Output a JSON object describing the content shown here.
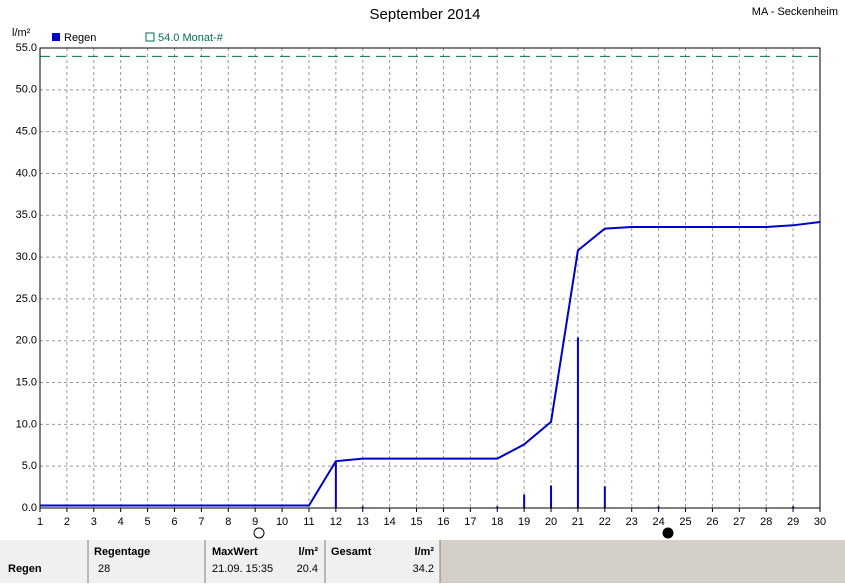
{
  "chart_data": {
    "type": "line",
    "title": "September 2014",
    "station": "MA - Seckenheim",
    "y_unit": "l/m²",
    "x": [
      1,
      2,
      3,
      4,
      5,
      6,
      7,
      8,
      9,
      10,
      11,
      12,
      13,
      14,
      15,
      16,
      17,
      18,
      19,
      20,
      21,
      22,
      23,
      24,
      25,
      26,
      27,
      28,
      29,
      30
    ],
    "series": [
      {
        "name": "Regen",
        "color": "#0000cc",
        "values": [
          0.3,
          0.3,
          0.3,
          0.3,
          0.3,
          0.3,
          0.3,
          0.3,
          0.3,
          0.3,
          0.3,
          5.6,
          5.9,
          5.9,
          5.9,
          5.9,
          5.9,
          5.9,
          7.6,
          10.3,
          30.8,
          33.4,
          33.6,
          33.6,
          33.6,
          33.6,
          33.6,
          33.6,
          33.8,
          34.2
        ],
        "bar_values": [
          null,
          null,
          null,
          null,
          null,
          null,
          null,
          null,
          null,
          null,
          null,
          5.6,
          0.2,
          null,
          null,
          null,
          null,
          0.2,
          1.6,
          2.7,
          20.4,
          2.6,
          null,
          0.2,
          null,
          null,
          null,
          null,
          0.2,
          null
        ]
      }
    ],
    "reference": {
      "value": 54.0,
      "label": "54.0 Monat-#",
      "color": "#007050"
    },
    "xlim": [
      1,
      30
    ],
    "ylim": [
      0,
      55
    ],
    "xticks": [
      1,
      2,
      3,
      4,
      5,
      6,
      7,
      8,
      9,
      10,
      11,
      12,
      13,
      14,
      15,
      16,
      17,
      18,
      19,
      20,
      21,
      22,
      23,
      24,
      25,
      26,
      27,
      28,
      29,
      30
    ],
    "yticks": [
      {
        "value": 0,
        "label": "0.0"
      },
      {
        "value": 5,
        "label": "5.0"
      },
      {
        "value": 10,
        "label": "10.0"
      },
      {
        "value": 15,
        "label": "15.0"
      },
      {
        "value": 20,
        "label": "20.0"
      },
      {
        "value": 25,
        "label": "25.0"
      },
      {
        "value": 30,
        "label": "30.0"
      },
      {
        "value": 35,
        "label": "35.0"
      },
      {
        "value": 40,
        "label": "40.0"
      },
      {
        "value": 45,
        "label": "45.0"
      },
      {
        "value": 50,
        "label": "50.0"
      },
      {
        "value": 55,
        "label": "55.0"
      }
    ],
    "grid": true
  },
  "table": {
    "headers": [
      "Regentage",
      "MaxWert",
      "l/m²",
      "Gesamt",
      "l/m²"
    ],
    "rows": [
      [
        "Regen",
        "28",
        "21.09. 15:35",
        "20.4",
        "34.2"
      ]
    ]
  }
}
